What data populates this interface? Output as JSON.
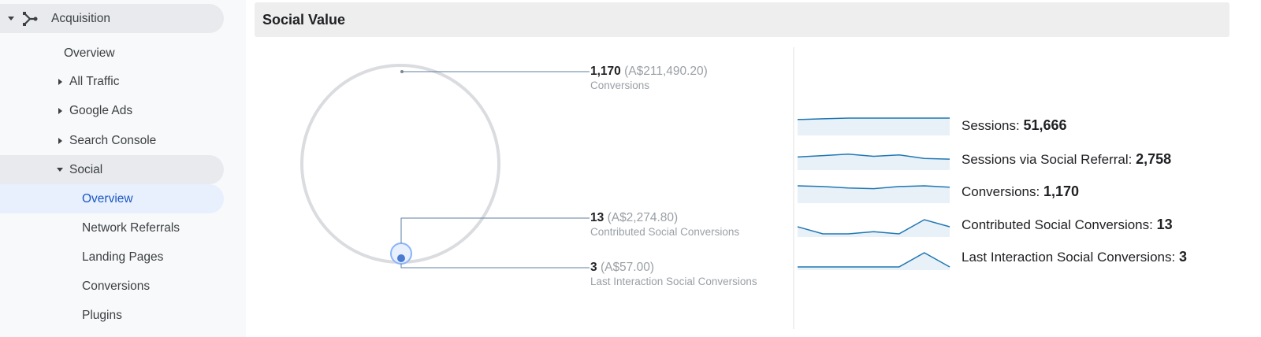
{
  "sidebar": {
    "items": [
      {
        "label": "Acquisition",
        "icon": "acquisition-icon",
        "state": "expanded"
      },
      {
        "label": "Overview"
      },
      {
        "label": "All Traffic",
        "state": "collapsed"
      },
      {
        "label": "Google Ads",
        "state": "collapsed"
      },
      {
        "label": "Search Console",
        "state": "collapsed"
      },
      {
        "label": "Social",
        "state": "expanded"
      },
      {
        "label": "Overview",
        "selected": true
      },
      {
        "label": "Network Referrals"
      },
      {
        "label": "Landing Pages"
      },
      {
        "label": "Conversions"
      },
      {
        "label": "Plugins"
      }
    ]
  },
  "header": {
    "title": "Social Value"
  },
  "callouts": [
    {
      "value": "1,170",
      "amount": "(A$211,490.20)",
      "label": "Conversions"
    },
    {
      "value": "13",
      "amount": "(A$2,274.80)",
      "label": "Contributed Social Conversions"
    },
    {
      "value": "3",
      "amount": "(A$57.00)",
      "label": "Last Interaction Social Conversions"
    }
  ],
  "metrics": [
    {
      "label": "Sessions:",
      "value": "51,666",
      "spark": [
        0.9,
        0.95,
        1,
        1,
        1,
        1,
        1
      ]
    },
    {
      "label": "Sessions via Social Referral:",
      "value": "2,758",
      "spark": [
        0.7,
        0.8,
        0.9,
        0.75,
        0.85,
        0.6,
        0.55
      ]
    },
    {
      "label": "Conversions:",
      "value": "1,170",
      "spark": [
        1,
        0.95,
        0.85,
        0.8,
        0.95,
        1,
        0.9
      ]
    },
    {
      "label": "Contributed Social Conversions:",
      "value": "13",
      "spark": [
        0.5,
        0,
        0,
        0.15,
        0,
        1,
        0.5
      ]
    },
    {
      "label": "Last Interaction Social Conversions:",
      "value": "3",
      "spark": [
        0,
        0,
        0,
        0,
        0,
        1,
        0
      ]
    }
  ],
  "colors": {
    "accent": "#1a73e8",
    "spark_line": "#1f77b4",
    "spark_fill": "#e8f0f8",
    "circle": "#dadce0"
  }
}
